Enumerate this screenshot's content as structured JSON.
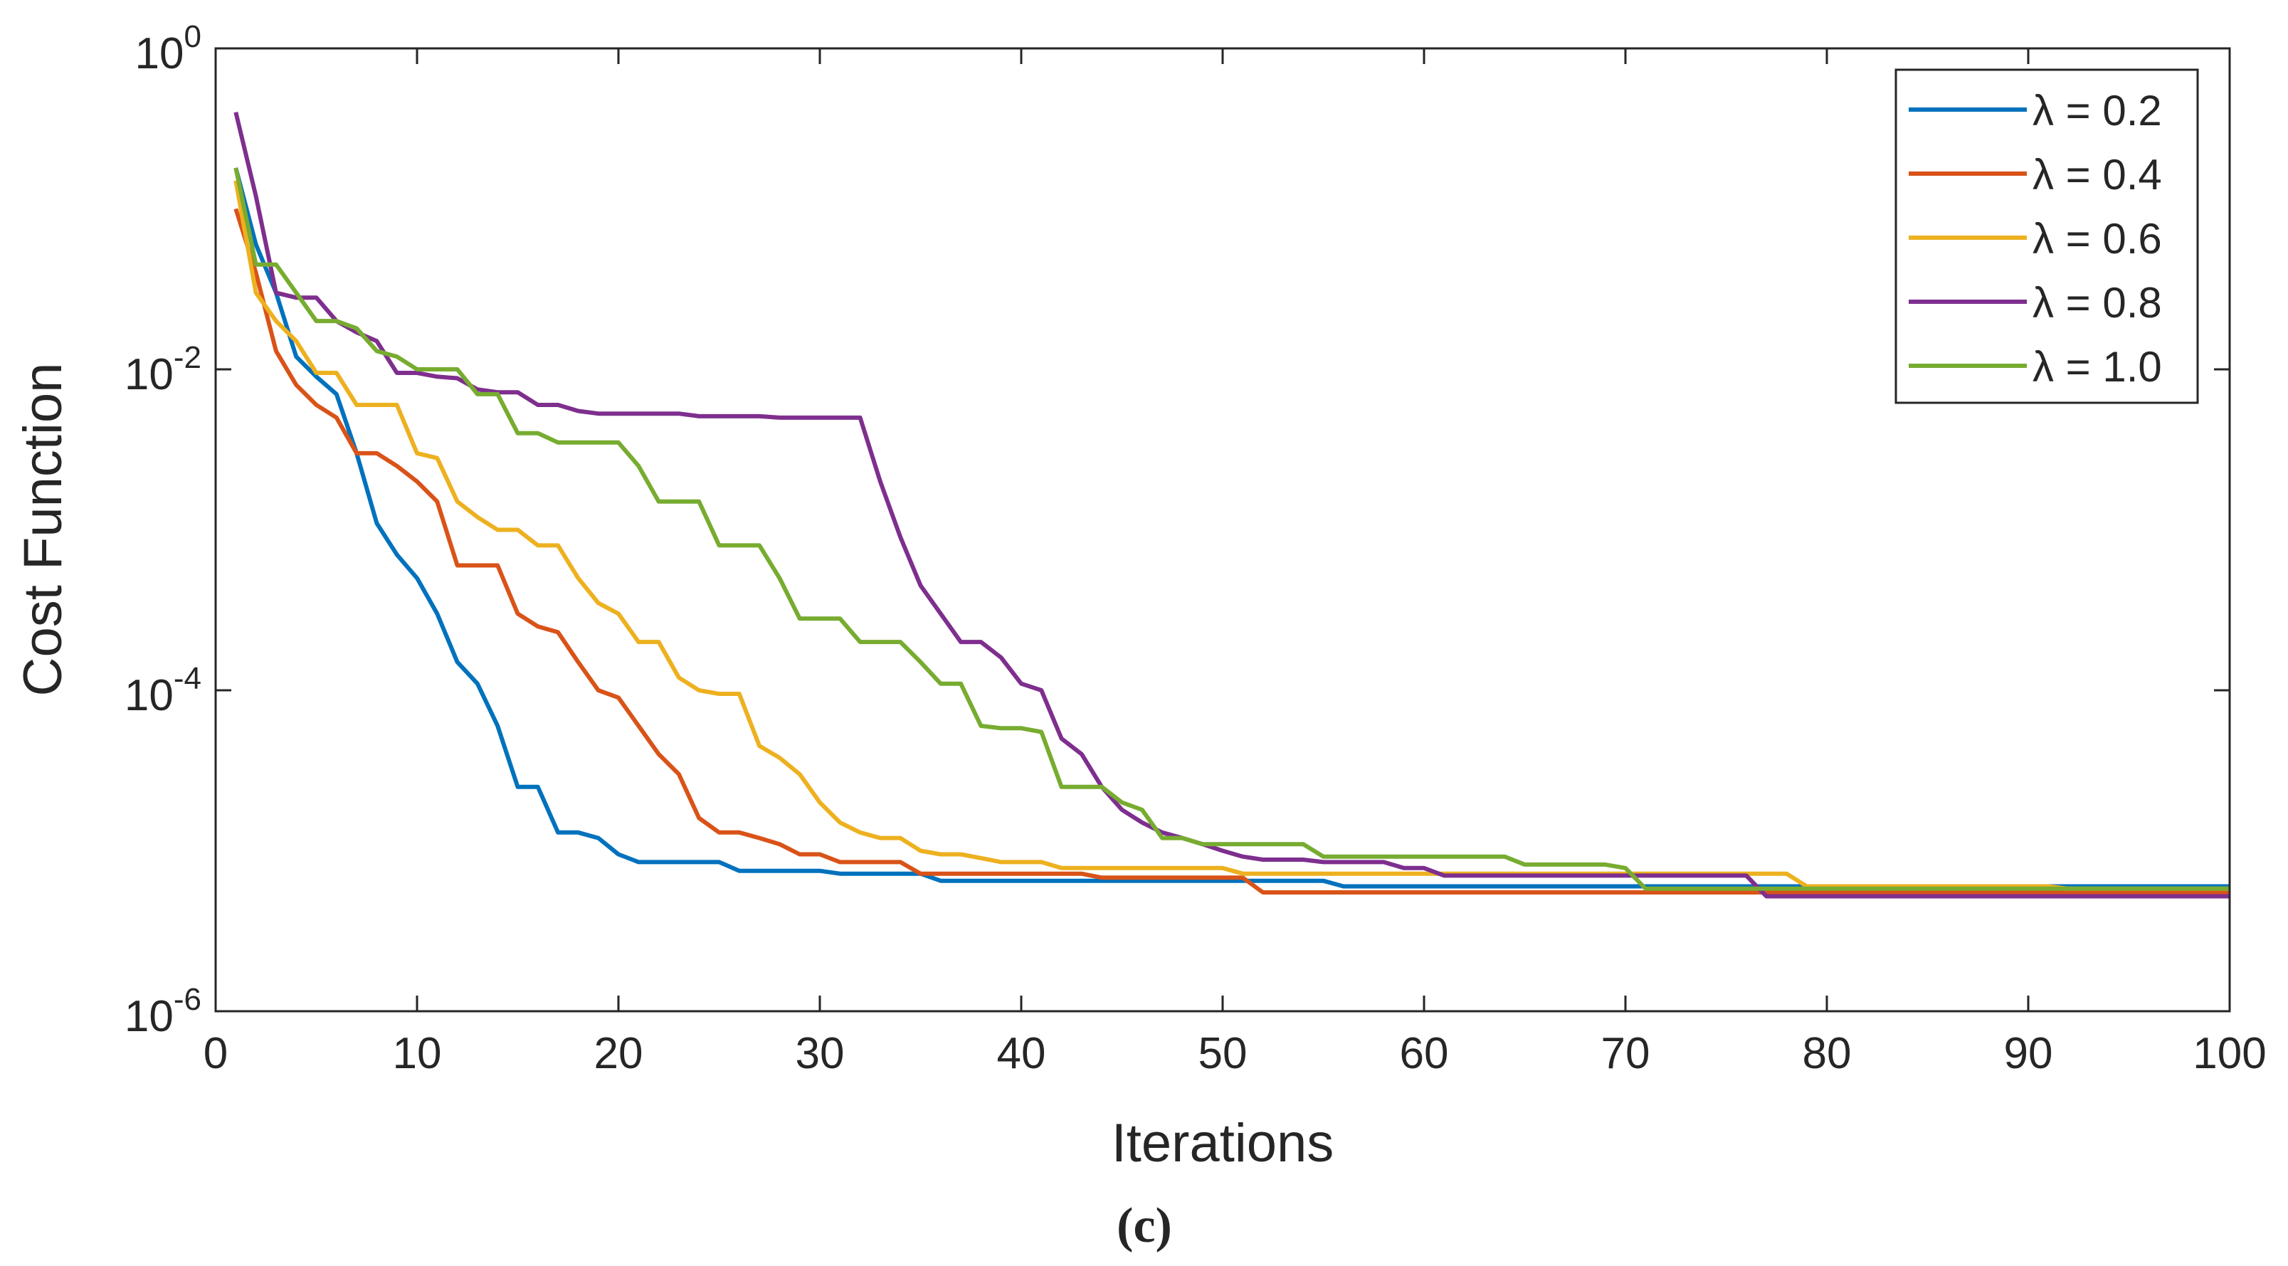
{
  "chart_data": {
    "type": "line",
    "xlabel": "Iterations",
    "ylabel": "Cost Function",
    "caption": "(c)",
    "xlim": [
      0,
      100
    ],
    "xticks": [
      0,
      10,
      20,
      30,
      40,
      50,
      60,
      70,
      80,
      90,
      100
    ],
    "ylim": [
      1e-06,
      1
    ],
    "yscale": "log",
    "yticks": [
      {
        "value": 1,
        "label": "10",
        "exponent": "0"
      },
      {
        "value": 0.01,
        "label": "10",
        "exponent": "-2"
      },
      {
        "value": 0.0001,
        "label": "10",
        "exponent": "-4"
      },
      {
        "value": 1e-06,
        "label": "10",
        "exponent": "-6"
      }
    ],
    "legend": "northeast",
    "x": [
      1,
      2,
      3,
      4,
      5,
      6,
      7,
      8,
      9,
      10,
      11,
      12,
      13,
      14,
      15,
      16,
      17,
      18,
      19,
      20,
      21,
      22,
      23,
      24,
      25,
      26,
      27,
      28,
      29,
      30,
      31,
      32,
      33,
      34,
      35,
      36,
      37,
      38,
      39,
      40,
      41,
      42,
      43,
      44,
      45,
      46,
      47,
      48,
      49,
      50,
      51,
      52,
      53,
      54,
      55,
      56,
      57,
      58,
      59,
      60,
      61,
      62,
      63,
      64,
      65,
      66,
      67,
      68,
      69,
      70,
      71,
      72,
      73,
      74,
      75,
      76,
      77,
      78,
      79,
      80,
      81,
      82,
      83,
      84,
      85,
      86,
      87,
      88,
      89,
      90,
      91,
      92,
      93,
      94,
      95,
      96,
      97,
      98,
      99,
      100
    ],
    "series": [
      {
        "name": "λ = 0.2",
        "color": "#0072BD",
        "values": [
          0.18,
          0.06,
          0.03,
          0.012,
          0.009,
          0.007,
          0.003,
          0.0011,
          0.0007,
          0.0005,
          0.0003,
          0.00015,
          0.00011,
          6e-05,
          2.5e-05,
          2.5e-05,
          1.3e-05,
          1.3e-05,
          1.2e-05,
          9.5e-06,
          8.5e-06,
          8.5e-06,
          8.5e-06,
          8.5e-06,
          8.5e-06,
          7.5e-06,
          7.5e-06,
          7.5e-06,
          7.5e-06,
          7.5e-06,
          7.2e-06,
          7.2e-06,
          7.2e-06,
          7.2e-06,
          7.2e-06,
          6.5e-06,
          6.5e-06,
          6.5e-06,
          6.5e-06,
          6.5e-06,
          6.5e-06,
          6.5e-06,
          6.5e-06,
          6.5e-06,
          6.5e-06,
          6.5e-06,
          6.5e-06,
          6.5e-06,
          6.5e-06,
          6.5e-06,
          6.5e-06,
          6.5e-06,
          6.5e-06,
          6.5e-06,
          6.5e-06,
          6e-06,
          6e-06,
          6e-06,
          6e-06,
          6e-06,
          6e-06,
          6e-06,
          6e-06,
          6e-06,
          6e-06,
          6e-06,
          6e-06,
          6e-06,
          6e-06,
          6e-06,
          6e-06,
          6e-06,
          6e-06,
          6e-06,
          6e-06,
          6e-06,
          6e-06,
          6e-06,
          6e-06,
          6e-06,
          6e-06,
          6e-06,
          6e-06,
          6e-06,
          6e-06,
          6e-06,
          6e-06,
          6e-06,
          6e-06,
          6e-06,
          6e-06,
          6e-06,
          6e-06,
          6e-06,
          6e-06,
          6e-06,
          6e-06,
          6e-06,
          6e-06,
          6e-06
        ]
      },
      {
        "name": "λ = 0.4",
        "color": "#D95319",
        "values": [
          0.1,
          0.04,
          0.013,
          0.008,
          0.006,
          0.005,
          0.003,
          0.003,
          0.0025,
          0.002,
          0.0015,
          0.0006,
          0.0006,
          0.0006,
          0.0003,
          0.00025,
          0.00023,
          0.00015,
          0.0001,
          9e-05,
          6e-05,
          4e-05,
          3e-05,
          1.6e-05,
          1.3e-05,
          1.3e-05,
          1.2e-05,
          1.1e-05,
          9.5e-06,
          9.5e-06,
          8.5e-06,
          8.5e-06,
          8.5e-06,
          8.5e-06,
          7.2e-06,
          7.2e-06,
          7.2e-06,
          7.2e-06,
          7.2e-06,
          7.2e-06,
          7.2e-06,
          7.2e-06,
          7.2e-06,
          6.8e-06,
          6.8e-06,
          6.8e-06,
          6.8e-06,
          6.8e-06,
          6.8e-06,
          6.8e-06,
          6.8e-06,
          5.5e-06,
          5.5e-06,
          5.5e-06,
          5.5e-06,
          5.5e-06,
          5.5e-06,
          5.5e-06,
          5.5e-06,
          5.5e-06,
          5.5e-06,
          5.5e-06,
          5.5e-06,
          5.5e-06,
          5.5e-06,
          5.5e-06,
          5.5e-06,
          5.5e-06,
          5.5e-06,
          5.5e-06,
          5.5e-06,
          5.5e-06,
          5.5e-06,
          5.5e-06,
          5.5e-06,
          5.5e-06,
          5.5e-06,
          5.5e-06,
          5.5e-06,
          5.5e-06,
          5.5e-06,
          5.5e-06,
          5.5e-06,
          5.5e-06,
          5.5e-06,
          5.5e-06,
          5.5e-06,
          5.5e-06,
          5.5e-06,
          5.5e-06,
          5.5e-06,
          5.5e-06,
          5.5e-06,
          5.5e-06,
          5.5e-06,
          5.5e-06,
          5.5e-06,
          5.5e-06,
          5.5e-06,
          5.5e-06
        ]
      },
      {
        "name": "λ = 0.6",
        "color": "#EDB120",
        "values": [
          0.15,
          0.03,
          0.02,
          0.015,
          0.0095,
          0.0095,
          0.006,
          0.006,
          0.006,
          0.003,
          0.0028,
          0.0015,
          0.0012,
          0.001,
          0.001,
          0.0008,
          0.0008,
          0.0005,
          0.00035,
          0.0003,
          0.0002,
          0.0002,
          0.00012,
          0.0001,
          9.5e-05,
          9.5e-05,
          4.5e-05,
          3.8e-05,
          3e-05,
          2e-05,
          1.5e-05,
          1.3e-05,
          1.2e-05,
          1.2e-05,
          1e-05,
          9.5e-06,
          9.5e-06,
          9e-06,
          8.5e-06,
          8.5e-06,
          8.5e-06,
          7.8e-06,
          7.8e-06,
          7.8e-06,
          7.8e-06,
          7.8e-06,
          7.8e-06,
          7.8e-06,
          7.8e-06,
          7.8e-06,
          7.2e-06,
          7.2e-06,
          7.2e-06,
          7.2e-06,
          7.2e-06,
          7.2e-06,
          7.2e-06,
          7.2e-06,
          7.2e-06,
          7.2e-06,
          7.2e-06,
          7.2e-06,
          7.2e-06,
          7.2e-06,
          7.2e-06,
          7.2e-06,
          7.2e-06,
          7.2e-06,
          7.2e-06,
          7.2e-06,
          7.2e-06,
          7.2e-06,
          7.2e-06,
          7.2e-06,
          7.2e-06,
          7.2e-06,
          7.2e-06,
          7.2e-06,
          6e-06,
          6e-06,
          6e-06,
          6e-06,
          6e-06,
          6e-06,
          6e-06,
          6e-06,
          6e-06,
          6e-06,
          6e-06,
          6e-06,
          6e-06,
          5.8e-06,
          5.8e-06,
          5.8e-06,
          5.8e-06,
          5.8e-06,
          5.8e-06,
          5.8e-06,
          5.8e-06,
          5.8e-06
        ]
      },
      {
        "name": "λ = 0.8",
        "color": "#7E2F8E",
        "values": [
          0.4,
          0.12,
          0.03,
          0.028,
          0.028,
          0.02,
          0.017,
          0.015,
          0.0095,
          0.0095,
          0.009,
          0.0088,
          0.0075,
          0.0072,
          0.0072,
          0.006,
          0.006,
          0.0055,
          0.0053,
          0.0053,
          0.0053,
          0.0053,
          0.0053,
          0.0051,
          0.0051,
          0.0051,
          0.0051,
          0.005,
          0.005,
          0.005,
          0.005,
          0.005,
          0.002,
          0.0009,
          0.00045,
          0.0003,
          0.0002,
          0.0002,
          0.00016,
          0.00011,
          0.0001,
          5e-05,
          4e-05,
          2.5e-05,
          1.8e-05,
          1.5e-05,
          1.3e-05,
          1.2e-05,
          1.1e-05,
          1e-05,
          9.2e-06,
          8.8e-06,
          8.8e-06,
          8.8e-06,
          8.5e-06,
          8.5e-06,
          8.5e-06,
          8.5e-06,
          7.8e-06,
          7.8e-06,
          7e-06,
          7e-06,
          7e-06,
          7e-06,
          7e-06,
          7e-06,
          7e-06,
          7e-06,
          7e-06,
          7e-06,
          7e-06,
          7e-06,
          7e-06,
          7e-06,
          7e-06,
          7e-06,
          5.2e-06,
          5.2e-06,
          5.2e-06,
          5.2e-06,
          5.2e-06,
          5.2e-06,
          5.2e-06,
          5.2e-06,
          5.2e-06,
          5.2e-06,
          5.2e-06,
          5.2e-06,
          5.2e-06,
          5.2e-06,
          5.2e-06,
          5.2e-06,
          5.2e-06,
          5.2e-06,
          5.2e-06,
          5.2e-06,
          5.2e-06,
          5.2e-06,
          5.2e-06,
          5.2e-06
        ]
      },
      {
        "name": "λ = 1.0",
        "color": "#77AC30",
        "values": [
          0.18,
          0.045,
          0.045,
          0.03,
          0.02,
          0.02,
          0.018,
          0.013,
          0.012,
          0.01,
          0.01,
          0.01,
          0.007,
          0.007,
          0.004,
          0.004,
          0.0035,
          0.0035,
          0.0035,
          0.0035,
          0.0025,
          0.0015,
          0.0015,
          0.0015,
          0.0008,
          0.0008,
          0.0008,
          0.0005,
          0.00028,
          0.00028,
          0.00028,
          0.0002,
          0.0002,
          0.0002,
          0.00015,
          0.00011,
          0.00011,
          6e-05,
          5.8e-05,
          5.8e-05,
          5.5e-05,
          2.5e-05,
          2.5e-05,
          2.5e-05,
          2e-05,
          1.8e-05,
          1.2e-05,
          1.2e-05,
          1.1e-05,
          1.1e-05,
          1.1e-05,
          1.1e-05,
          1.1e-05,
          1.1e-05,
          9.2e-06,
          9.2e-06,
          9.2e-06,
          9.2e-06,
          9.2e-06,
          9.2e-06,
          9.2e-06,
          9.2e-06,
          9.2e-06,
          9.2e-06,
          8.2e-06,
          8.2e-06,
          8.2e-06,
          8.2e-06,
          8.2e-06,
          7.8e-06,
          5.8e-06,
          5.8e-06,
          5.8e-06,
          5.8e-06,
          5.8e-06,
          5.8e-06,
          5.8e-06,
          5.8e-06,
          5.8e-06,
          5.8e-06,
          5.8e-06,
          5.8e-06,
          5.8e-06,
          5.8e-06,
          5.8e-06,
          5.8e-06,
          5.8e-06,
          5.8e-06,
          5.8e-06,
          5.8e-06,
          5.8e-06,
          5.8e-06,
          5.8e-06,
          5.8e-06,
          5.8e-06,
          5.8e-06,
          5.8e-06,
          5.8e-06,
          5.8e-06,
          5.8e-06
        ]
      }
    ]
  }
}
